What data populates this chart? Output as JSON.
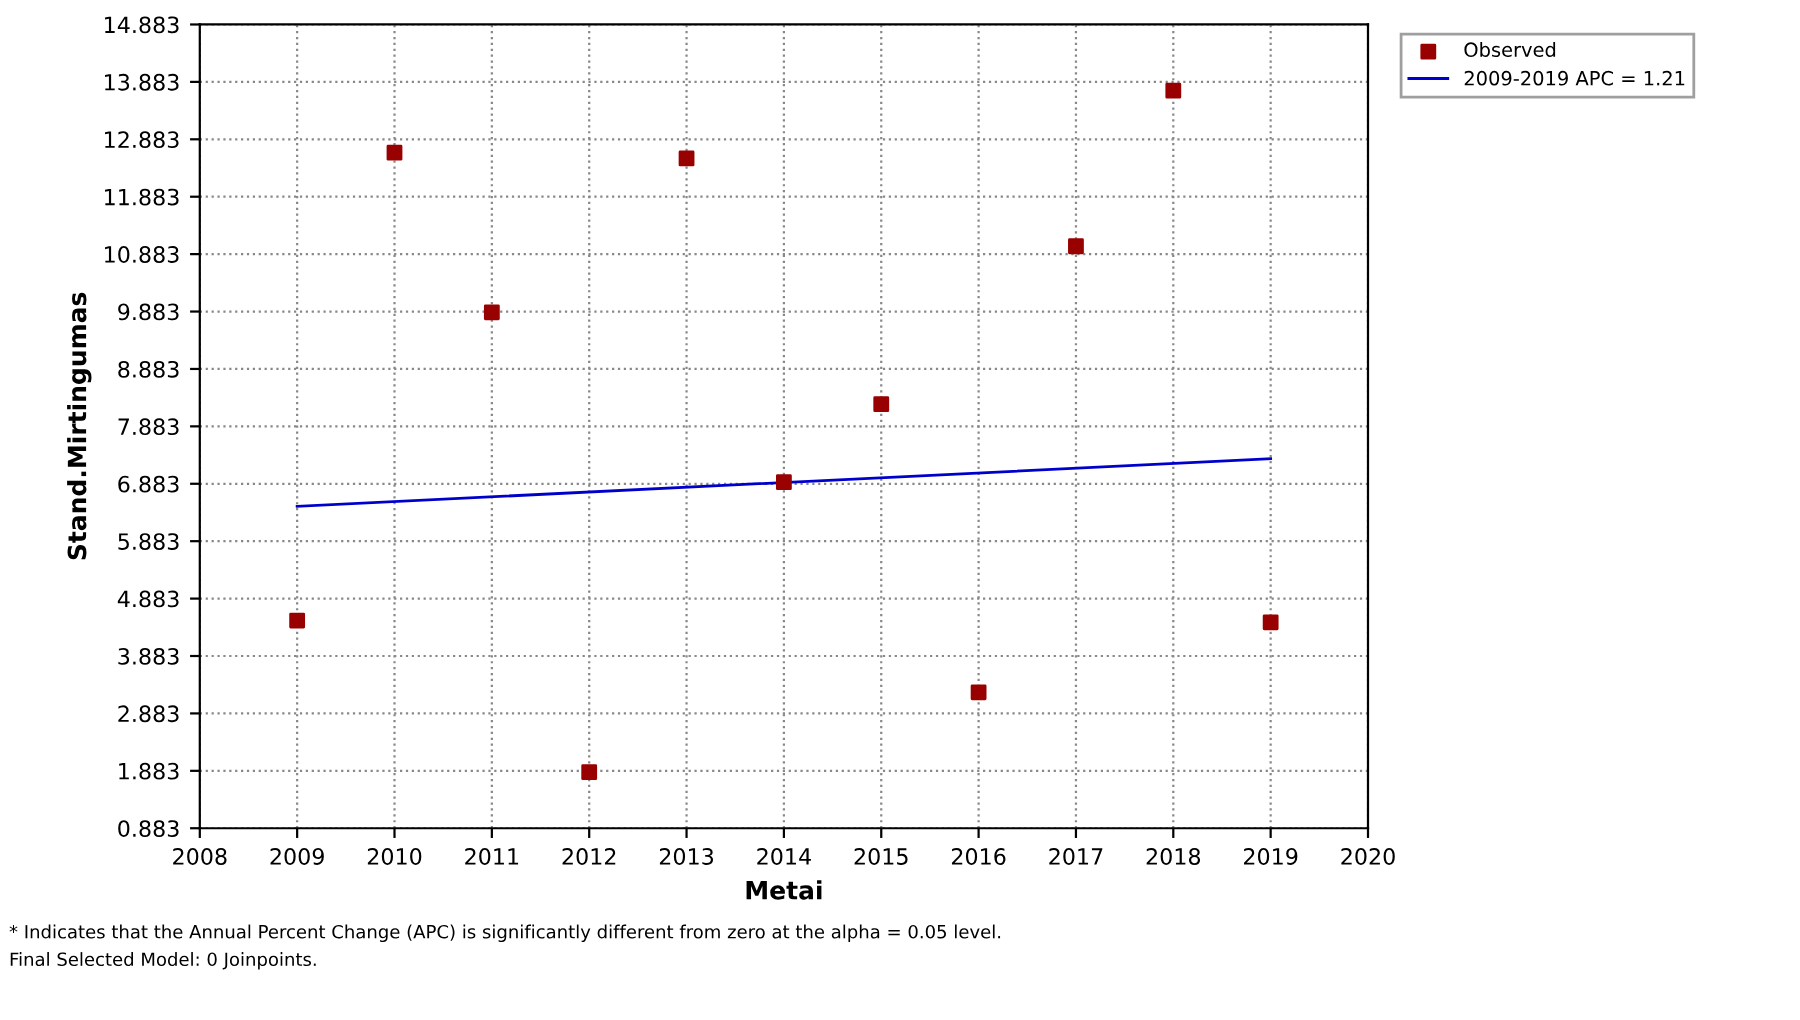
{
  "chart_data": {
    "type": "scatter",
    "xlabel": "Metai",
    "ylabel": "Stand.Mirtingumas",
    "xlim": [
      2008,
      2020
    ],
    "xticks": [
      2008,
      2009,
      2010,
      2011,
      2012,
      2013,
      2014,
      2015,
      2016,
      2017,
      2018,
      2019,
      2020
    ],
    "ylim": [
      0.883,
      14.883
    ],
    "yticks": [
      0.883,
      1.883,
      2.883,
      3.883,
      4.883,
      5.883,
      6.883,
      7.883,
      8.883,
      9.883,
      10.883,
      11.883,
      12.883,
      13.883,
      14.883
    ],
    "grid": true,
    "legend": "top right",
    "series": [
      {
        "name": "Observed",
        "marker": "square",
        "color": "#990000",
        "x": [
          2009,
          2010,
          2011,
          2012,
          2013,
          2014,
          2015,
          2016,
          2017,
          2018,
          2019
        ],
        "values": [
          4.5,
          12.65,
          9.87,
          1.86,
          12.55,
          6.91,
          8.27,
          3.25,
          11.02,
          13.73,
          4.47
        ]
      },
      {
        "name": "2009-2019 APC = 1.21",
        "type": "line",
        "color": "#0000cc",
        "x": [
          2009,
          2019
        ],
        "values": [
          6.49,
          7.32
        ]
      }
    ],
    "annotations": [
      "* Indicates that the Annual Percent Change (APC) is significantly different from zero at the alpha = 0.05 level.",
      "Final Selected Model: 0 Joinpoints."
    ]
  }
}
